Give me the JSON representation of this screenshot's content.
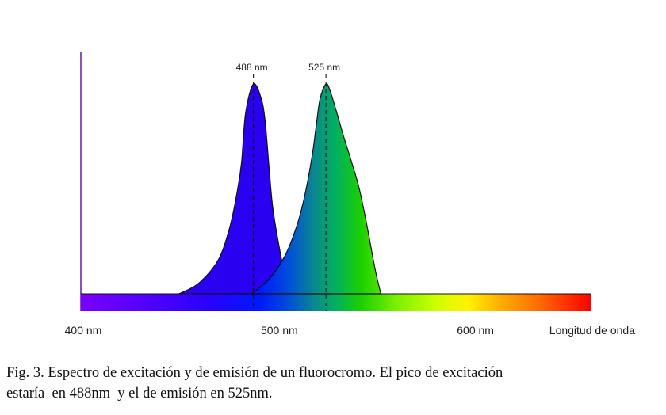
{
  "chart_data": {
    "type": "area",
    "xlabel": "Longitud de onda",
    "xunit": "nm",
    "xlim": [
      400,
      660
    ],
    "xticks": [
      {
        "value": 400,
        "label": "400 nm"
      },
      {
        "value": 500,
        "label": "500 nm"
      },
      {
        "value": 600,
        "label": "600 nm"
      }
    ],
    "spectrum_bar": {
      "from": 400,
      "to": 660
    },
    "series": [
      {
        "key": "excitation",
        "peak": 488,
        "peak_label": "488 nm",
        "x": [
          450,
          460,
          470,
          476,
          480,
          482,
          484,
          488,
          492,
          494,
          496,
          498,
          502,
          506
        ],
        "y": [
          0,
          0.05,
          0.16,
          0.32,
          0.5,
          0.63,
          0.86,
          1.0,
          0.93,
          0.82,
          0.6,
          0.4,
          0.18,
          0.0
        ]
      },
      {
        "key": "emission",
        "peak": 525,
        "peak_label": "525 nm",
        "x": [
          487,
          496,
          504,
          510,
          514,
          518,
          520,
          522,
          525,
          527,
          530,
          534,
          538,
          542,
          546,
          550,
          553
        ],
        "y": [
          0,
          0.07,
          0.18,
          0.32,
          0.46,
          0.66,
          0.8,
          0.93,
          1.0,
          0.97,
          0.88,
          0.75,
          0.63,
          0.5,
          0.32,
          0.12,
          0.0
        ]
      }
    ]
  },
  "caption": {
    "line1": "Fig. 3. Espectro de excitación y de emisión de un fluorocromo. El pico de excitación",
    "line2": "estaría  en 488nm  y el de emisión en 525nm."
  }
}
